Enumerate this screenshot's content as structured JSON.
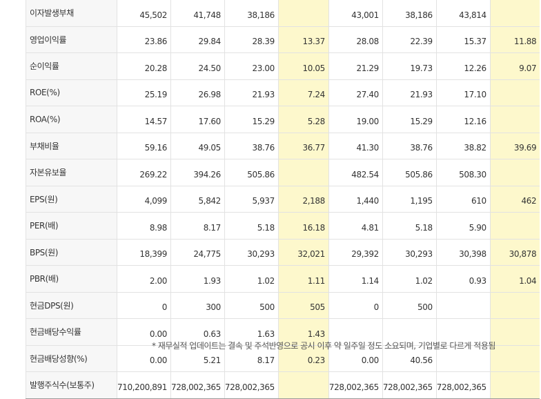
{
  "table": {
    "rows": [
      {
        "label": "이자발생부채",
        "values": [
          "45,502",
          "41,748",
          "38,186",
          "",
          "43,001",
          "38,186",
          "43,814",
          ""
        ]
      },
      {
        "label": "영업이익률",
        "values": [
          "23.86",
          "29.84",
          "28.39",
          "13.37",
          "28.08",
          "22.39",
          "15.37",
          "11.88"
        ]
      },
      {
        "label": "순이익률",
        "values": [
          "20.28",
          "24.50",
          "23.00",
          "10.05",
          "21.29",
          "19.73",
          "12.26",
          "9.07"
        ]
      },
      {
        "label": "ROE(%)",
        "values": [
          "25.19",
          "26.98",
          "21.93",
          "7.24",
          "27.40",
          "21.93",
          "17.10",
          ""
        ]
      },
      {
        "label": "ROA(%)",
        "values": [
          "14.57",
          "17.60",
          "15.29",
          "5.28",
          "19.00",
          "15.29",
          "12.16",
          ""
        ]
      },
      {
        "label": "부채비율",
        "values": [
          "59.16",
          "49.05",
          "38.76",
          "36.77",
          "41.30",
          "38.76",
          "38.82",
          "39.69"
        ]
      },
      {
        "label": "자본유보율",
        "values": [
          "269.22",
          "394.26",
          "505.86",
          "",
          "482.54",
          "505.86",
          "508.30",
          ""
        ]
      },
      {
        "label": "EPS(원)",
        "values": [
          "4,099",
          "5,842",
          "5,937",
          "2,188",
          "1,440",
          "1,195",
          "610",
          "462"
        ]
      },
      {
        "label": "PER(배)",
        "values": [
          "8.98",
          "8.17",
          "5.18",
          "16.18",
          "4.81",
          "5.18",
          "5.90",
          ""
        ]
      },
      {
        "label": "BPS(원)",
        "values": [
          "18,399",
          "24,775",
          "30,293",
          "32,021",
          "29,392",
          "30,293",
          "30,398",
          "30,878"
        ]
      },
      {
        "label": "PBR(배)",
        "values": [
          "2.00",
          "1.93",
          "1.02",
          "1.11",
          "1.14",
          "1.02",
          "0.93",
          "1.04"
        ]
      },
      {
        "label": "현금DPS(원)",
        "values": [
          "0",
          "300",
          "500",
          "505",
          "0",
          "500",
          "",
          ""
        ]
      },
      {
        "label": "현금배당수익률",
        "values": [
          "0.00",
          "0.63",
          "1.63",
          "1.43",
          "",
          "",
          "",
          ""
        ]
      },
      {
        "label": "현금배당성향(%)",
        "values": [
          "0.00",
          "5.21",
          "8.17",
          "0.23",
          "0.00",
          "40.56",
          "",
          ""
        ]
      },
      {
        "label": "발행주식수(보통주)",
        "values": [
          "710,200,891",
          "728,002,365",
          "728,002,365",
          "",
          "728,002,365",
          "728,002,365",
          "728,002,365",
          ""
        ]
      }
    ]
  },
  "footnote": "* 재무실적 업데이트는 결속 및 주석반영으로 공시 이후 약 일주일 정도 소요되며, 기업별로 다르게 적용됨"
}
